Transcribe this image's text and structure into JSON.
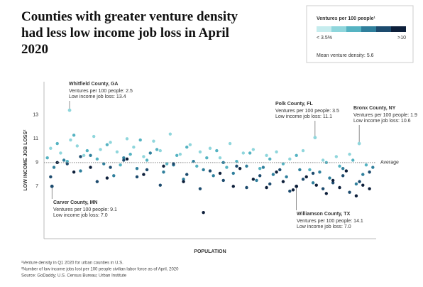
{
  "chart_data": {
    "type": "scatter",
    "title": "Counties with greater venture density had less low income job loss in April 2020",
    "x_label": "POPULATION",
    "y_label": "LOW INCOME JOB LOSS²",
    "xlim": [
      0,
      100
    ],
    "ylim": [
      2.6,
      15.8
    ],
    "yticks": [
      7,
      9,
      11,
      13
    ],
    "average": 9,
    "average_label": "Average",
    "legend": {
      "title": "Ventures per 100 people¹",
      "colors": [
        "#c6ecee",
        "#8fd6dc",
        "#55b3c2",
        "#2f7f9c",
        "#1d4b6e",
        "#0d1f3a"
      ],
      "low_label": "< 3.5%",
      "high_label": ">10",
      "note": "Mean venture density: 5.6"
    },
    "series": [
      {
        "color": "#8fd6dc",
        "x": [
          2,
          5,
          8,
          10,
          12,
          15,
          17,
          20,
          22,
          25,
          27,
          30,
          33,
          35,
          38,
          41,
          44,
          47,
          50,
          53,
          56,
          60,
          63,
          67,
          70,
          74,
          78,
          84,
          88,
          92
        ],
        "y": [
          10.2,
          9.8,
          10.9,
          10.4,
          9.6,
          11.2,
          10.1,
          10.7,
          9.9,
          11.0,
          10.3,
          9.5,
          10.8,
          10.0,
          11.4,
          9.7,
          10.5,
          9.9,
          10.2,
          9.4,
          10.6,
          9.8,
          10.1,
          9.6,
          9.9,
          9.3,
          10.0,
          9.2,
          9.5,
          9.7
        ]
      },
      {
        "color": "#55b3c2",
        "x": [
          1,
          4,
          7,
          9,
          13,
          16,
          19,
          23,
          26,
          29,
          31,
          34,
          37,
          40,
          43,
          46,
          49,
          52,
          55,
          58,
          62,
          65,
          68,
          72,
          76,
          80,
          85,
          89,
          93,
          97
        ],
        "y": [
          9.4,
          10.6,
          9.1,
          11.3,
          10.0,
          9.3,
          10.5,
          8.8,
          9.7,
          10.9,
          9.2,
          10.1,
          8.9,
          9.6,
          10.3,
          8.7,
          9.4,
          10.0,
          8.6,
          9.1,
          9.8,
          8.5,
          9.3,
          8.9,
          9.6,
          8.4,
          9.0,
          8.7,
          9.2,
          8.8
        ]
      },
      {
        "color": "#2f7f9c",
        "x": [
          3,
          6,
          11,
          14,
          18,
          21,
          24,
          28,
          32,
          36,
          39,
          42,
          45,
          48,
          51,
          54,
          57,
          61,
          64,
          66,
          69,
          73,
          77,
          81,
          83,
          86,
          90,
          94,
          96,
          99
        ],
        "y": [
          8.6,
          9.2,
          8.3,
          9.6,
          8.9,
          7.9,
          9.4,
          8.5,
          9.8,
          8.2,
          8.8,
          7.6,
          9.1,
          8.4,
          7.9,
          9.0,
          8.1,
          8.7,
          7.5,
          8.6,
          8.0,
          7.8,
          8.4,
          7.3,
          8.2,
          7.7,
          8.5,
          7.2,
          8.0,
          8.6
        ]
      },
      {
        "color": "#1d4b6e",
        "x": [
          2,
          7,
          11,
          16,
          20,
          24,
          28,
          31,
          35,
          39,
          43,
          47,
          50,
          54,
          58,
          61,
          65,
          68,
          71,
          74,
          78,
          81,
          84,
          87,
          90,
          92,
          95,
          98
        ],
        "y": [
          7.8,
          8.9,
          9.5,
          7.4,
          8.6,
          9.2,
          7.8,
          8.4,
          7.1,
          8.9,
          8.0,
          6.8,
          8.3,
          7.5,
          8.7,
          6.9,
          7.9,
          7.2,
          8.4,
          6.6,
          7.6,
          8.1,
          6.8,
          7.3,
          7.9,
          6.5,
          7.4,
          8.2
        ]
      },
      {
        "color": "#0d1f3a",
        "x": [
          4,
          9,
          14,
          19,
          25,
          30,
          36,
          42,
          48,
          53,
          57,
          59,
          63,
          67,
          70,
          72,
          75,
          79,
          82,
          85,
          87,
          89,
          91,
          94,
          96,
          98
        ],
        "y": [
          9.0,
          8.2,
          8.6,
          7.7,
          9.3,
          8.0,
          8.7,
          7.4,
          4.8,
          8.1,
          7.0,
          8.5,
          7.6,
          6.9,
          8.2,
          7.4,
          6.7,
          7.8,
          7.1,
          6.4,
          7.5,
          6.9,
          8.3,
          6.2,
          7.1,
          6.8
        ]
      }
    ],
    "annotations": [
      {
        "title": "Whitfield County, GA",
        "lines": [
          "Ventures per 100 people: 2.5",
          "Low income job loss: 13.4"
        ],
        "x": 7.7,
        "y": 13.4,
        "color": "#8fd6dc"
      },
      {
        "title": "Polk County, FL",
        "lines": [
          "Ventures per 100 people: 3.5",
          "Low income job loss: 11.1"
        ],
        "x": 81.6,
        "y": 11.1,
        "color": "#8fd6dc"
      },
      {
        "title": "Bronx County, NY",
        "lines": [
          "Ventures per 100 people: 1.9",
          "Low income job loss: 10.6"
        ],
        "x": 94.9,
        "y": 10.6,
        "color": "#8fd6dc"
      },
      {
        "title": "Carver County, MN",
        "lines": [
          "Ventures per 100 people: 9.1",
          "Low income job loss: 7.0"
        ],
        "x": 2.4,
        "y": 7.0,
        "color": "#1d4b6e"
      },
      {
        "title": "Williamson County, TX",
        "lines": [
          "Ventures per 100 people: 14.1",
          "Low income job loss: 7.0"
        ],
        "x": 76,
        "y": 7.0,
        "color": "#0d1f3a"
      }
    ],
    "footnotes": [
      "¹Venture density in Q1 2020 for urban counties in U.S.",
      "²Number of low income jobs lost per 100 people civilian labor force as of April, 2020",
      "Source: GoDaddy; U.S. Census Bureau; Urban Institute"
    ]
  }
}
